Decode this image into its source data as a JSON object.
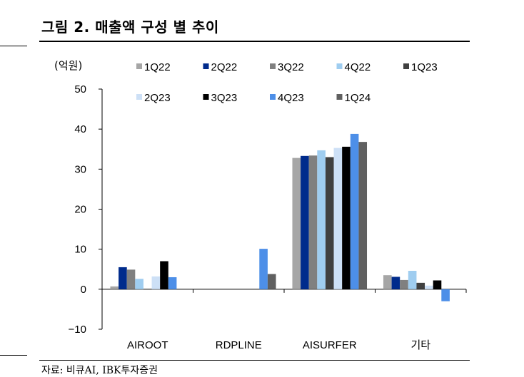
{
  "figure": {
    "title": "그림 2. 매출액 구성 별 추이",
    "source": "자료: 비큐AI, IBK투자증권",
    "unit": "(억원)"
  },
  "chart_data": {
    "type": "bar",
    "categories": [
      "AIROOT",
      "RDPLINE",
      "AISURFER",
      "기타"
    ],
    "ylim": [
      -10,
      50
    ],
    "yticks": [
      -10,
      0,
      10,
      20,
      30,
      40,
      50
    ],
    "ytick_labels": [
      "−10",
      "0",
      "10",
      "20",
      "30",
      "40",
      "50"
    ],
    "grid": false,
    "legend_position": "top",
    "series": [
      {
        "name": "1Q22",
        "color": "#a6a6a6",
        "values": [
          0.7,
          0,
          32.8,
          3.5
        ]
      },
      {
        "name": "2Q22",
        "color": "#002b8c",
        "values": [
          5.5,
          0,
          33.3,
          3.1
        ]
      },
      {
        "name": "3Q22",
        "color": "#808080",
        "values": [
          4.9,
          0,
          33.4,
          2.3
        ]
      },
      {
        "name": "4Q22",
        "color": "#9fcdf0",
        "values": [
          2.6,
          0,
          34.7,
          4.6
        ]
      },
      {
        "name": "1Q23",
        "color": "#404040",
        "values": [
          0,
          0,
          33.0,
          1.6
        ]
      },
      {
        "name": "2Q23",
        "color": "#cde0f6",
        "values": [
          3.2,
          0,
          35.3,
          0.9
        ]
      },
      {
        "name": "3Q23",
        "color": "#000000",
        "values": [
          7.0,
          0,
          35.6,
          2.2
        ]
      },
      {
        "name": "4Q23",
        "color": "#4d8fe8",
        "values": [
          3.0,
          10.1,
          38.8,
          -3.0
        ]
      },
      {
        "name": "1Q24",
        "color": "#606060",
        "values": [
          0,
          3.8,
          36.8,
          0
        ]
      }
    ]
  }
}
